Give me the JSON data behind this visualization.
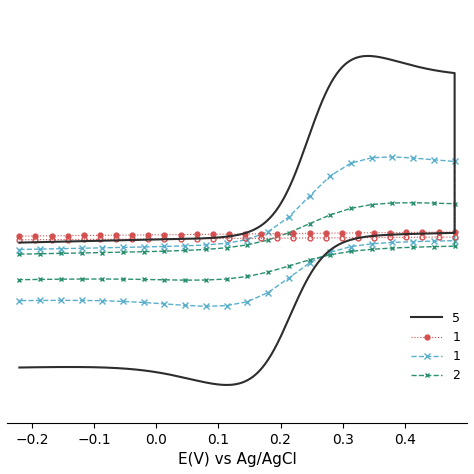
{
  "xlabel": "E(V) vs Ag/AgCl",
  "xlabel_fontsize": 11,
  "xlim": [
    -0.24,
    0.5
  ],
  "ylim": [
    -0.75,
    1.05
  ],
  "xticks": [
    -0.2,
    -0.1,
    0.0,
    0.1,
    0.2,
    0.3,
    0.4
  ],
  "background_color": "#ffffff",
  "legend_labels": [
    "5",
    "1",
    "1",
    "2"
  ],
  "curve1_color": "#2d2d2d",
  "curve2_color": "#d45050",
  "curve3_color": "#5ab0cc",
  "curve4_color": "#2a9070"
}
